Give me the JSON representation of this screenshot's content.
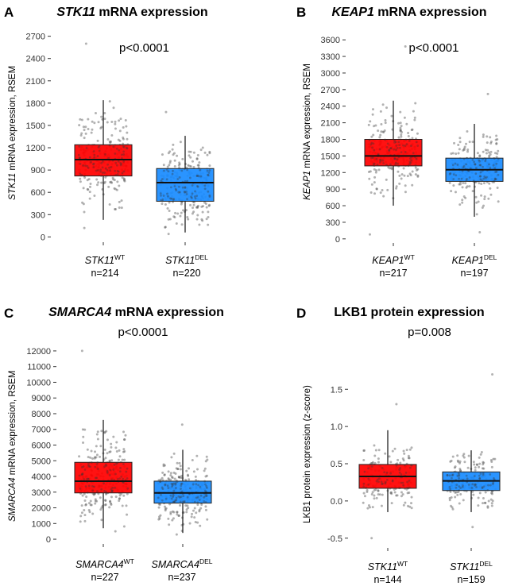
{
  "chart_data": [
    {
      "panel": "A",
      "type": "box",
      "title_gene": "STK11",
      "title_rest": " mRNA expression",
      "ylabel_gene": "STK11",
      "ylabel_rest": " mRNA expression, RSEM",
      "yticks": [
        0,
        300,
        600,
        900,
        1200,
        1500,
        1800,
        2100,
        2400,
        2700
      ],
      "ytick_labels": [
        "0",
        "300",
        "600",
        "900",
        "1200",
        "1500",
        "1800",
        "2100",
        "2400",
        "2700"
      ],
      "ylim": [
        -60,
        2760
      ],
      "pvalue": "p<0.0001",
      "groups": [
        {
          "gene": "STK11",
          "sup": "WT",
          "n_label": "n=214",
          "n": 214,
          "color": "#ff0000",
          "q1": 820,
          "median": 1040,
          "q3": 1240,
          "whisker_low": 230,
          "whisker_high": 1840,
          "max": 2600,
          "min": 120
        },
        {
          "gene": "STK11",
          "sup": "DEL",
          "n_label": "n=220",
          "n": 220,
          "color": "#1a8cff",
          "q1": 480,
          "median": 730,
          "q3": 920,
          "whisker_low": 60,
          "whisker_high": 1360,
          "max": 1680,
          "min": 40
        }
      ]
    },
    {
      "panel": "B",
      "type": "box",
      "title_gene": "KEAP1",
      "title_rest": " mRNA expression",
      "ylabel_gene": "KEAP1",
      "ylabel_rest": " mRNA expression, RSEM",
      "yticks": [
        0,
        300,
        600,
        900,
        1200,
        1500,
        1800,
        2100,
        2400,
        2700,
        3000,
        3300,
        3600
      ],
      "ytick_labels": [
        "0",
        "300",
        "600",
        "900",
        "1200",
        "1500",
        "1800",
        "2100",
        "2400",
        "2700",
        "3000",
        "3300",
        "3600"
      ],
      "ylim": [
        -60,
        3660
      ],
      "pvalue": "p<0.0001",
      "groups": [
        {
          "gene": "KEAP1",
          "sup": "WT",
          "n_label": "n=217",
          "n": 217,
          "color": "#ff0000",
          "q1": 1320,
          "median": 1500,
          "q3": 1800,
          "whisker_low": 600,
          "whisker_high": 2500,
          "max": 3480,
          "min": 80
        },
        {
          "gene": "KEAP1",
          "sup": "DEL",
          "n_label": "n=197",
          "n": 197,
          "color": "#1a8cff",
          "q1": 1040,
          "median": 1250,
          "q3": 1460,
          "whisker_low": 400,
          "whisker_high": 2080,
          "max": 2620,
          "min": 120
        }
      ]
    },
    {
      "panel": "C",
      "type": "box",
      "title_gene": "SMARCA4",
      "title_rest": " mRNA expression",
      "ylabel_gene": "SMARCA4",
      "ylabel_rest": " mRNA expression, RSEM",
      "yticks": [
        0,
        1000,
        2000,
        3000,
        4000,
        5000,
        6000,
        7000,
        8000,
        9000,
        10000,
        11000,
        12000
      ],
      "ytick_labels": [
        "0",
        "1000",
        "2000",
        "3000",
        "4000",
        "5000",
        "6000",
        "7000",
        "8000",
        "9000",
        "10000",
        "11000",
        "12000"
      ],
      "ylim": [
        -250,
        12300
      ],
      "pvalue": "p<0.0001",
      "groups": [
        {
          "gene": "SMARCA4",
          "sup": "WT",
          "n_label": "n=227",
          "n": 227,
          "color": "#ff0000",
          "q1": 2950,
          "median": 3700,
          "q3": 4900,
          "whisker_low": 700,
          "whisker_high": 7600,
          "max": 12000,
          "min": 500
        },
        {
          "gene": "SMARCA4",
          "sup": "DEL",
          "n_label": "n=237",
          "n": 237,
          "color": "#1a8cff",
          "q1": 2300,
          "median": 2950,
          "q3": 3700,
          "whisker_low": 400,
          "whisker_high": 5700,
          "max": 7300,
          "min": 300
        }
      ]
    },
    {
      "panel": "D",
      "type": "box",
      "title_gene": "",
      "title_rest": "LKB1 protein expression",
      "ylabel_gene": "",
      "ylabel_rest": "LKB1 protein expression (z-score)",
      "yticks": [
        -0.5,
        0.0,
        0.5,
        1.0,
        1.5
      ],
      "ytick_labels": [
        "-0.5",
        "0.0",
        "0.5",
        "1.0",
        "1.5"
      ],
      "ylim": [
        -0.62,
        1.78
      ],
      "pvalue": "p=0.008",
      "groups": [
        {
          "gene": "STK11",
          "sup": "WT",
          "n_label": "n=144",
          "n": 144,
          "color": "#ff0000",
          "q1": 0.17,
          "median": 0.33,
          "q3": 0.49,
          "whisker_low": -0.15,
          "whisker_high": 0.95,
          "max": 1.3,
          "min": -0.5
        },
        {
          "gene": "STK11",
          "sup": "DEL",
          "n_label": "n=159",
          "n": 159,
          "color": "#1a8cff",
          "q1": 0.14,
          "median": 0.27,
          "q3": 0.39,
          "whisker_low": -0.15,
          "whisker_high": 0.68,
          "max": 1.7,
          "min": -0.35
        }
      ]
    }
  ]
}
